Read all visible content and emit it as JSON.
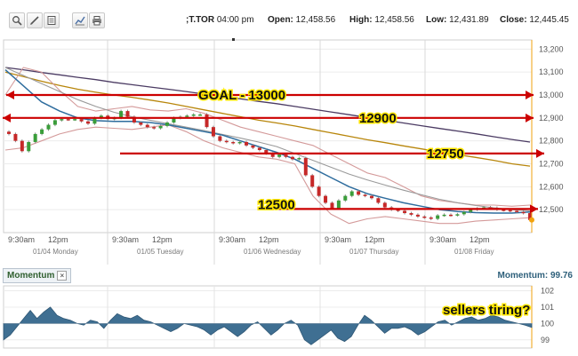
{
  "quote": {
    "symbol": ";T.TOR",
    "time": "04:00 pm",
    "open_label": "Open:",
    "open": "12,458.56",
    "high_label": "High:",
    "high": "12,458.56",
    "low_label": "Low:",
    "low": "12,431.89",
    "close_label": "Close:",
    "close": "12,445.45"
  },
  "toolbar": {
    "icons": [
      "zoom-icon",
      "draw-icon",
      "notes-icon",
      "chart-settings-icon",
      "print-icon"
    ]
  },
  "momentum": {
    "tab_label": "Momentum",
    "readout_label": "Momentum:",
    "readout_value": "99.76",
    "ticks": [
      "102",
      "101",
      "100",
      "99"
    ]
  },
  "annotations": [
    {
      "text": "GOAL - 13000",
      "y": 13000
    },
    {
      "text": "12900",
      "y": 12900
    },
    {
      "text": "12750",
      "y": 12745
    },
    {
      "text": "12500",
      "y": 12503
    }
  ],
  "sellers_note": "sellers tiring?",
  "chart_data": {
    "type": "line",
    "title": "",
    "price_ylim": [
      12400,
      13240
    ],
    "price_ticks": [
      "13,200",
      "13,100",
      "13,000",
      "12,900",
      "12,800",
      "12,700",
      "12,600",
      "12,500"
    ],
    "time_ticks": [
      "9:30am",
      "12pm",
      "9:30am",
      "12pm",
      "9:30am",
      "12pm",
      "9:30am",
      "12pm",
      "9:30am",
      "12pm"
    ],
    "day_labels": [
      "01/04 Monday",
      "01/05 Tuesday",
      "01/06 Wednesday",
      "01/07 Thursday",
      "01/08 Friday"
    ],
    "price": [
      12830,
      12800,
      12755,
      12795,
      12830,
      12850,
      12870,
      12890,
      12895,
      12893,
      12895,
      12885,
      12875,
      12900,
      12910,
      12895,
      12900,
      12930,
      12905,
      12880,
      12870,
      12860,
      12855,
      12865,
      12880,
      12900,
      12905,
      12910,
      12915,
      12915,
      12860,
      12820,
      12800,
      12795,
      12790,
      12795,
      12780,
      12770,
      12760,
      12745,
      12730,
      12740,
      12730,
      12720,
      12725,
      12650,
      12600,
      12560,
      12530,
      12505,
      12540,
      12560,
      12580,
      12565,
      12560,
      12550,
      12530,
      12510,
      12500,
      12495,
      12485,
      12478,
      12470,
      12466,
      12460,
      12475,
      12478,
      12476,
      12480,
      12490,
      12500,
      12505,
      12510,
      12508,
      12500,
      12498,
      12495,
      12490,
      12485,
      12455
    ],
    "sma_fast": [
      13110,
      13040,
      12970,
      12930,
      12900,
      12888,
      12885,
      12885,
      12880,
      12870,
      12855,
      12840,
      12825,
      12800,
      12775,
      12750,
      12720,
      12680,
      12640,
      12600,
      12570,
      12550,
      12530,
      12515,
      12500,
      12492,
      12487,
      12485,
      12485,
      12490
    ],
    "sma_mid": [
      13120,
      13085,
      13050,
      13015,
      12980,
      12950,
      12925,
      12905,
      12890,
      12875,
      12860,
      12845,
      12828,
      12812,
      12795,
      12775,
      12745,
      12715,
      12685,
      12655,
      12630,
      12607,
      12585,
      12565,
      12545,
      12530,
      12518,
      12508,
      12500,
      12495
    ],
    "sma_slow": [
      13100,
      13080,
      13060,
      13042,
      13025,
      13012,
      13000,
      12990,
      12978,
      12965,
      12950,
      12935,
      12920,
      12905,
      12890,
      12878,
      12865,
      12850,
      12835,
      12820,
      12805,
      12792,
      12778,
      12765,
      12752,
      12740,
      12728,
      12715,
      12700,
      12690
    ],
    "sma_long": [
      13120,
      13110,
      13098,
      13088,
      13077,
      13067,
      13055,
      13045,
      13035,
      13025,
      13015,
      13004,
      12994,
      12983,
      12972,
      12962,
      12950,
      12938,
      12926,
      12914,
      12902,
      12890,
      12878,
      12866,
      12854,
      12843,
      12831,
      12818,
      12806,
      12795
    ],
    "bb_upper": [
      13000,
      13120,
      13100,
      13020,
      12950,
      12930,
      12940,
      12950,
      12935,
      12930,
      12940,
      12920,
      12890,
      12860,
      12840,
      12820,
      12800,
      12780,
      12740,
      12700,
      12660,
      12640,
      12600,
      12560,
      12540,
      12530,
      12520,
      12520,
      12515,
      12520
    ],
    "bb_lower": [
      12760,
      12770,
      12800,
      12830,
      12850,
      12860,
      12855,
      12850,
      12860,
      12870,
      12840,
      12800,
      12770,
      12750,
      12730,
      12720,
      12700,
      12560,
      12480,
      12440,
      12460,
      12470,
      12460,
      12450,
      12440,
      12440,
      12450,
      12455,
      12460,
      12465
    ],
    "momentum_ylim": [
      98.5,
      102.3
    ],
    "momentum": [
      99.0,
      99.3,
      99.8,
      100.3,
      100.8,
      100.3,
      100.7,
      101.0,
      100.5,
      100.3,
      100.2,
      100.0,
      99.9,
      100.2,
      100.1,
      99.7,
      100.2,
      100.6,
      100.4,
      100.3,
      100.5,
      100.2,
      100.1,
      99.9,
      99.7,
      99.5,
      99.7,
      100.0,
      99.9,
      99.8,
      99.6,
      99.3,
      99.6,
      99.8,
      99.5,
      99.2,
      99.5,
      99.9,
      100.1,
      99.7,
      99.3,
      99.6,
      100.0,
      100.2,
      99.9,
      99.0,
      98.7,
      99.0,
      99.3,
      99.6,
      99.1,
      98.9,
      99.2,
      99.9,
      100.5,
      100.2,
      99.8,
      99.4,
      99.7,
      99.7,
      99.8,
      99.6,
      99.3,
      99.5,
      99.8,
      100.1,
      100.2,
      99.9,
      100.1,
      100.3,
      100.4,
      100.2,
      100.3,
      100.5,
      100.4,
      100.2,
      100.1,
      100.0,
      99.9,
      99.76
    ]
  }
}
